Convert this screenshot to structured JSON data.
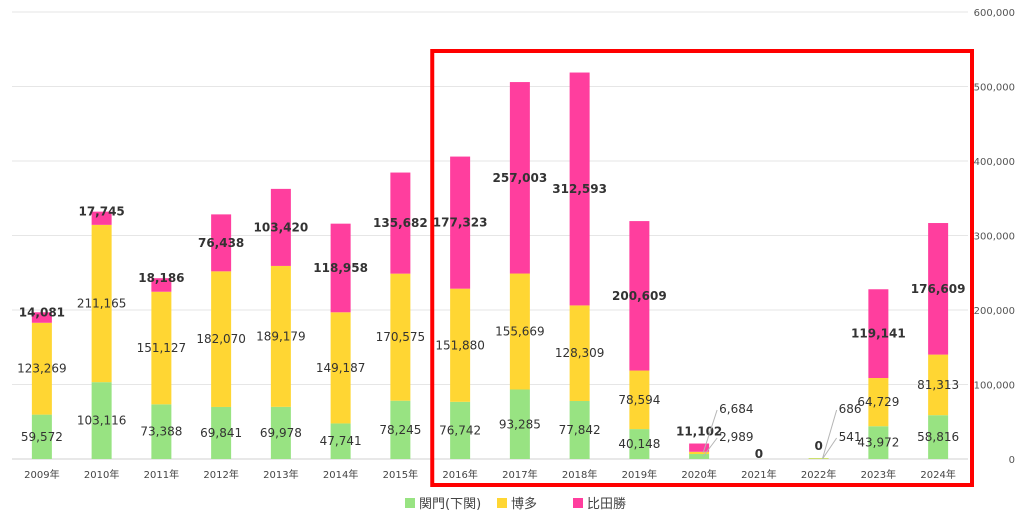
{
  "chart_data": {
    "type": "bar",
    "stacked": true,
    "categories": [
      "2009年",
      "2010年",
      "2011年",
      "2012年",
      "2013年",
      "2014年",
      "2015年",
      "2016年",
      "2017年",
      "2018年",
      "2019年",
      "2020年",
      "2021年",
      "2022年",
      "2023年",
      "2024年"
    ],
    "series": [
      {
        "name": "関門(下関)",
        "color": "#98E382",
        "values": [
          59572,
          103116,
          73388,
          69841,
          69978,
          47741,
          78245,
          76742,
          93285,
          77842,
          40148,
          6684,
          0,
          686,
          43972,
          58816
        ]
      },
      {
        "name": "博多",
        "color": "#FFD633",
        "values": [
          123269,
          211165,
          151127,
          182070,
          189179,
          149187,
          170575,
          151880,
          155669,
          128309,
          78594,
          2989,
          0,
          541,
          64729,
          81313
        ]
      },
      {
        "name": "比田勝",
        "color": "#FF3E9E",
        "values": [
          14081,
          17745,
          18186,
          76438,
          103420,
          118958,
          135682,
          177323,
          257003,
          312593,
          200609,
          11102,
          0,
          0,
          119141,
          176609
        ]
      }
    ],
    "data_labels": {
      "seg1": [
        "59,572",
        "103,116",
        "73,388",
        "69,841",
        "69,978",
        "47,741",
        "78,245",
        "76,742",
        "93,285",
        "77,842",
        "40,148",
        "6,684",
        "",
        "686",
        "43,972",
        "58,816"
      ],
      "seg2": [
        "123,269",
        "211,165",
        "151,127",
        "182,070",
        "189,179",
        "149,187",
        "170,575",
        "151,880",
        "155,669",
        "128,309",
        "78,594",
        "2,989",
        "",
        "541",
        "64,729",
        "81,313"
      ],
      "seg3": [
        "14,081",
        "17,745",
        "18,186",
        "76,438",
        "103,420",
        "118,958",
        "135,682",
        "177,323",
        "257,003",
        "312,593",
        "200,609",
        "11,102",
        "0",
        "0",
        "119,141",
        "176,609"
      ]
    },
    "y_axis": {
      "position": "right",
      "range": [
        0,
        600000
      ],
      "tick_labels": [
        "0",
        "100,000",
        "200,000",
        "300,000",
        "400,000",
        "500,000",
        "600,000"
      ]
    },
    "grid": true,
    "legend": "bottom",
    "highlight": {
      "type": "rectangle",
      "color": "#FF0000",
      "from": "2016年",
      "to": "2024年"
    }
  }
}
